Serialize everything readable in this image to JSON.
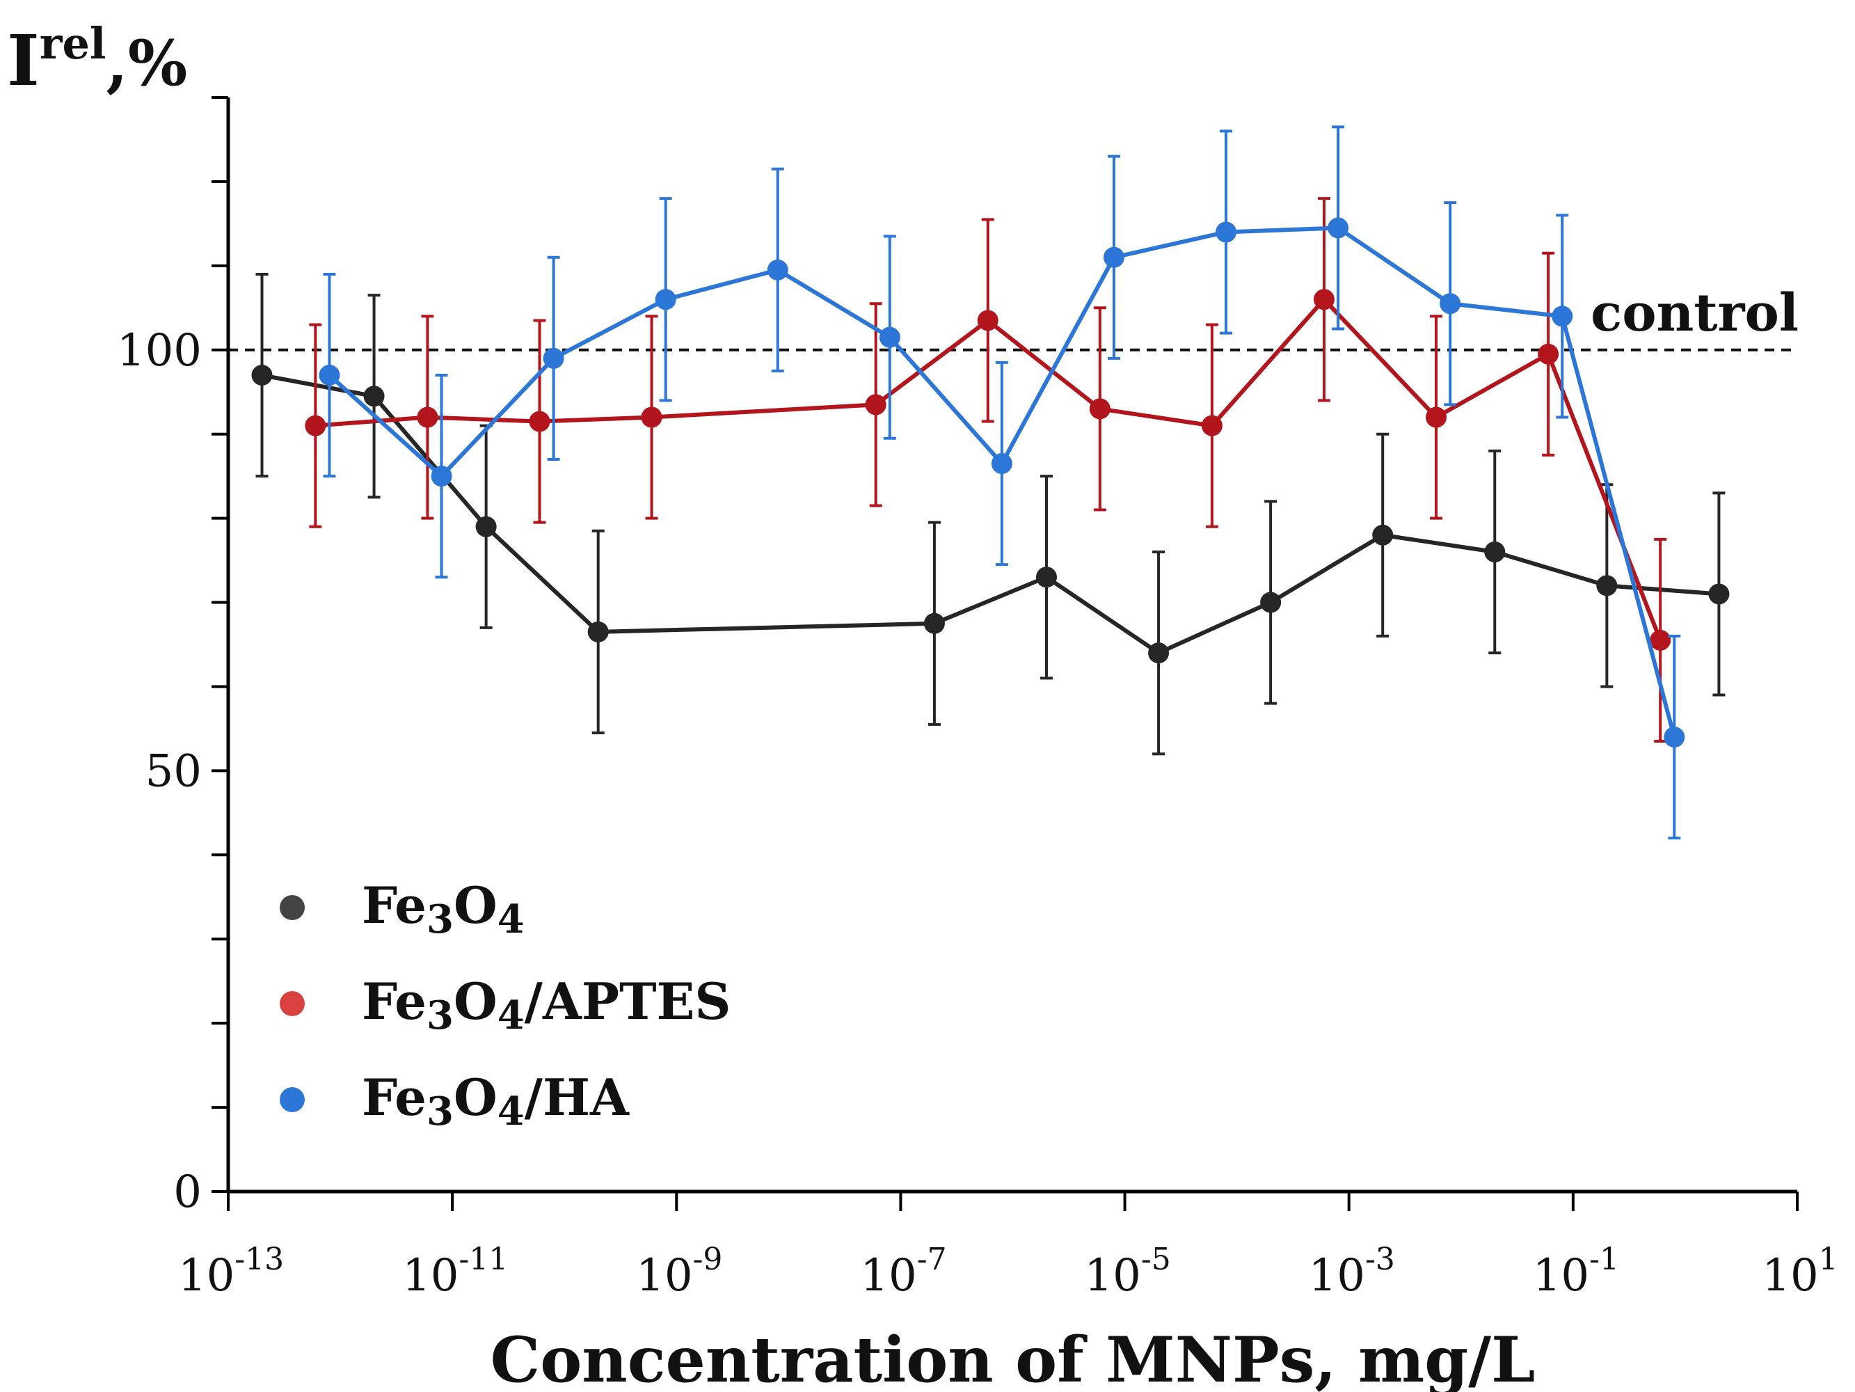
{
  "chart_data": {
    "type": "line",
    "title": "",
    "ylabel": {
      "base": "I",
      "sup": "rel",
      "suffix": ",%"
    },
    "xlabel": "Concentration of MNPs, mg/L",
    "xscale": "log",
    "xlim": [
      1e-13,
      10
    ],
    "ylim": [
      0,
      130
    ],
    "x_ticks": [
      {
        "value": 1e-13,
        "base": "10",
        "exp": "-13"
      },
      {
        "value": 1e-11,
        "base": "10",
        "exp": "-11"
      },
      {
        "value": 1e-09,
        "base": "10",
        "exp": "-9"
      },
      {
        "value": 1e-07,
        "base": "10",
        "exp": "-7"
      },
      {
        "value": 1e-05,
        "base": "10",
        "exp": "-5"
      },
      {
        "value": 0.001,
        "base": "10",
        "exp": "-3"
      },
      {
        "value": 0.1,
        "base": "10",
        "exp": "-1"
      },
      {
        "value": 10,
        "base": "10",
        "exp": "1"
      }
    ],
    "y_ticks_labeled": [
      {
        "value": 0,
        "label": "0"
      },
      {
        "value": 50,
        "label": "50"
      },
      {
        "value": 100,
        "label": "100"
      }
    ],
    "y_minor_step": 10,
    "control": {
      "value": 100,
      "label": "control"
    },
    "legend_position": "bottom-left",
    "series": [
      {
        "name": "Fe3O4",
        "legend": {
          "a": "Fe",
          "s1": "3",
          "b": "O",
          "s2": "4",
          "rest": ""
        },
        "color": "#262626",
        "marker_color": "#444444",
        "points": [
          {
            "x": 2e-13,
            "y": 97,
            "err": 12
          },
          {
            "x": 2e-12,
            "y": 94.5,
            "err": 12
          },
          {
            "x": 2e-11,
            "y": 79,
            "err": 12
          },
          {
            "x": 2e-10,
            "y": 66.5,
            "err": 12
          },
          {
            "x": 2e-07,
            "y": 67.5,
            "err": 12
          },
          {
            "x": 2e-06,
            "y": 73,
            "err": 12
          },
          {
            "x": 2e-05,
            "y": 64,
            "err": 12
          },
          {
            "x": 0.0002,
            "y": 70,
            "err": 12
          },
          {
            "x": 0.002,
            "y": 78,
            "err": 12
          },
          {
            "x": 0.02,
            "y": 76,
            "err": 12
          },
          {
            "x": 0.2,
            "y": 72,
            "err": 12
          },
          {
            "x": 2,
            "y": 71,
            "err": 12
          }
        ]
      },
      {
        "name": "Fe3O4/APTES",
        "legend": {
          "a": "Fe",
          "s1": "3",
          "b": "O",
          "s2": "4",
          "rest": "/APTES"
        },
        "color": "#b3151c",
        "marker_color": "#d94040",
        "points": [
          {
            "x": 6e-13,
            "y": 91,
            "err": 12
          },
          {
            "x": 6e-12,
            "y": 92,
            "err": 12
          },
          {
            "x": 6e-11,
            "y": 91.5,
            "err": 12
          },
          {
            "x": 6e-10,
            "y": 92,
            "err": 12
          },
          {
            "x": 6e-08,
            "y": 93.5,
            "err": 12
          },
          {
            "x": 6e-07,
            "y": 103.5,
            "err": 12
          },
          {
            "x": 6e-06,
            "y": 93,
            "err": 12
          },
          {
            "x": 6e-05,
            "y": 91,
            "err": 12
          },
          {
            "x": 0.0006,
            "y": 106,
            "err": 12
          },
          {
            "x": 0.006,
            "y": 92,
            "err": 12
          },
          {
            "x": 0.06,
            "y": 99.5,
            "err": 12
          },
          {
            "x": 0.6,
            "y": 65.5,
            "err": 12
          }
        ]
      },
      {
        "name": "Fe3O4/HA",
        "legend": {
          "a": "Fe",
          "s1": "3",
          "b": "O",
          "s2": "4",
          "rest": "/HA"
        },
        "color": "#2b76d6",
        "marker_color": "#2b76d6",
        "points": [
          {
            "x": 8e-13,
            "y": 97,
            "err": 12
          },
          {
            "x": 8e-12,
            "y": 85,
            "err": 12
          },
          {
            "x": 8e-11,
            "y": 99,
            "err": 12
          },
          {
            "x": 8e-10,
            "y": 106,
            "err": 12
          },
          {
            "x": 8e-09,
            "y": 109.5,
            "err": 12
          },
          {
            "x": 8e-08,
            "y": 101.5,
            "err": 12
          },
          {
            "x": 8e-07,
            "y": 86.5,
            "err": 12
          },
          {
            "x": 8e-06,
            "y": 111,
            "err": 12
          },
          {
            "x": 8e-05,
            "y": 114,
            "err": 12
          },
          {
            "x": 0.0008,
            "y": 114.5,
            "err": 12
          },
          {
            "x": 0.008,
            "y": 105.5,
            "err": 12
          },
          {
            "x": 0.08,
            "y": 104,
            "err": 12
          },
          {
            "x": 0.8,
            "y": 54,
            "err": 12
          }
        ]
      }
    ]
  }
}
